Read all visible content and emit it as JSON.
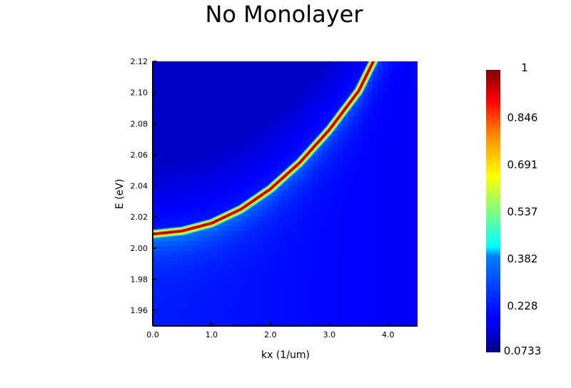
{
  "chart_data": {
    "type": "heatmap",
    "title": "No Monolayer",
    "xlabel": "kx (1/um)",
    "ylabel": "E (eV)",
    "xlim": [
      0.0,
      4.5
    ],
    "ylim": [
      1.95,
      2.12
    ],
    "x_ticks": [
      "0.0",
      "1.0",
      "2.0",
      "3.0",
      "4.0"
    ],
    "y_ticks": [
      "1.96",
      "1.98",
      "2.00",
      "2.02",
      "2.04",
      "2.06",
      "2.08",
      "2.10",
      "2.12"
    ],
    "colorbar": {
      "min": 0.0733,
      "max": 1,
      "tick_labels": [
        "1",
        "0.846",
        "0.691",
        "0.537",
        "0.382",
        "0.228",
        "0.0733"
      ],
      "colormap": "jet"
    },
    "dispersion_curve": {
      "description_values": "peak intensity ridge E(kx)",
      "kx": [
        0.0,
        0.5,
        1.0,
        1.5,
        2.0,
        2.5,
        3.0,
        3.5,
        3.75
      ],
      "E": [
        2.009,
        2.011,
        2.016,
        2.025,
        2.038,
        2.055,
        2.076,
        2.101,
        2.12
      ]
    }
  }
}
